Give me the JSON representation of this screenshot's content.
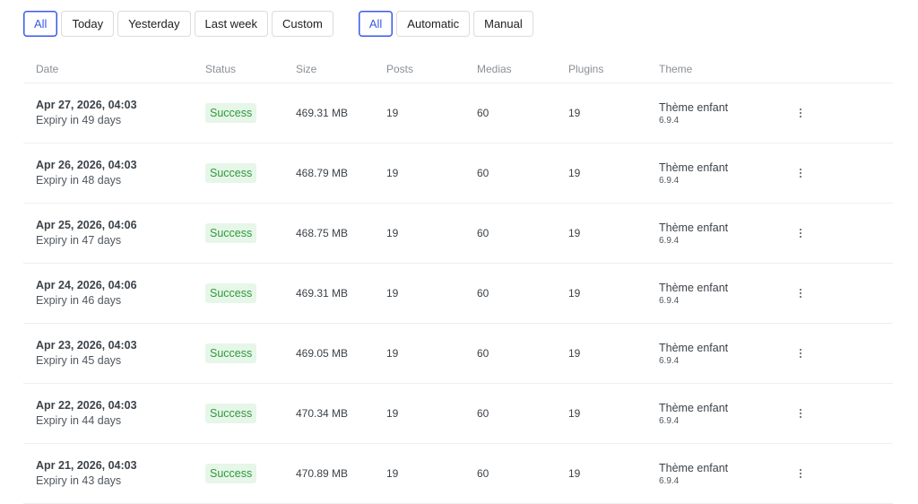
{
  "filters": {
    "period": [
      {
        "label": "All",
        "active": true
      },
      {
        "label": "Today",
        "active": false
      },
      {
        "label": "Yesterday",
        "active": false
      },
      {
        "label": "Last week",
        "active": false
      },
      {
        "label": "Custom",
        "active": false
      }
    ],
    "type": [
      {
        "label": "All",
        "active": true
      },
      {
        "label": "Automatic",
        "active": false
      },
      {
        "label": "Manual",
        "active": false
      }
    ]
  },
  "columns": [
    "Date",
    "Status",
    "Size",
    "Posts",
    "Medias",
    "Plugins",
    "Theme"
  ],
  "colors": {
    "accent": "#3858e9",
    "success_bg": "#e6f6e8",
    "success_text": "#2e9a3c"
  },
  "rows": [
    {
      "date": "Apr 27, 2026, 04:03",
      "expiry": "Expiry in 49 days",
      "status": "Success",
      "size": "469.31 MB",
      "posts": "19",
      "medias": "60",
      "plugins": "19",
      "theme": "Thème enfant",
      "theme_version": "6.9.4"
    },
    {
      "date": "Apr 26, 2026, 04:03",
      "expiry": "Expiry in 48 days",
      "status": "Success",
      "size": "468.79 MB",
      "posts": "19",
      "medias": "60",
      "plugins": "19",
      "theme": "Thème enfant",
      "theme_version": "6.9.4"
    },
    {
      "date": "Apr 25, 2026, 04:06",
      "expiry": "Expiry in 47 days",
      "status": "Success",
      "size": "468.75 MB",
      "posts": "19",
      "medias": "60",
      "plugins": "19",
      "theme": "Thème enfant",
      "theme_version": "6.9.4"
    },
    {
      "date": "Apr 24, 2026, 04:06",
      "expiry": "Expiry in 46 days",
      "status": "Success",
      "size": "469.31 MB",
      "posts": "19",
      "medias": "60",
      "plugins": "19",
      "theme": "Thème enfant",
      "theme_version": "6.9.4"
    },
    {
      "date": "Apr 23, 2026, 04:03",
      "expiry": "Expiry in 45 days",
      "status": "Success",
      "size": "469.05 MB",
      "posts": "19",
      "medias": "60",
      "plugins": "19",
      "theme": "Thème enfant",
      "theme_version": "6.9.4"
    },
    {
      "date": "Apr 22, 2026, 04:03",
      "expiry": "Expiry in 44 days",
      "status": "Success",
      "size": "470.34 MB",
      "posts": "19",
      "medias": "60",
      "plugins": "19",
      "theme": "Thème enfant",
      "theme_version": "6.9.4"
    },
    {
      "date": "Apr 21, 2026, 04:03",
      "expiry": "Expiry in 43 days",
      "status": "Success",
      "size": "470.89 MB",
      "posts": "19",
      "medias": "60",
      "plugins": "19",
      "theme": "Thème enfant",
      "theme_version": "6.9.4"
    }
  ]
}
